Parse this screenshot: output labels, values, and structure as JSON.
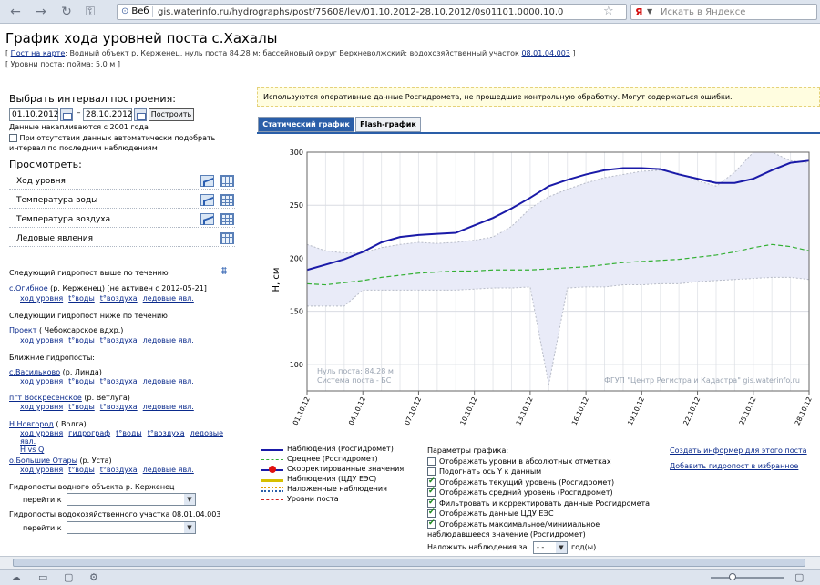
{
  "browser": {
    "web_label": "Веб",
    "url": "gis.waterinfo.ru/hydrographs/post/75608/lev/01.10.2012-28.10.2012/0s01101.0000.10.0",
    "search_brand": "Я",
    "search_placeholder": "Искать в Яндексе"
  },
  "header": {
    "title": "График хода уровней поста с.Хахалы",
    "map_link": "Пост на карте",
    "info": "; Водный объект р. Керженец, нуль поста 84.28 м; бассейновый округ Верхневолжский; водохозяйственный участок",
    "info_link": "08.01.04.003",
    "info2": "[ Уровни поста: пойма: 5.0 м ]"
  },
  "left": {
    "interval_title": "Выбрать интервал построения:",
    "date_from": "01.10.2012",
    "date_to": "28.10.2012",
    "dash": "–",
    "build_btn": "Построить",
    "since_note": "Данные накапливаются с 2001 года",
    "auto_note": "При отсутствии данных автоматически подобрать интервал по последним наблюдениям",
    "view_title": "Просмотреть:",
    "view_items": [
      "Ход уровня",
      "Температура воды",
      "Температура воздуха",
      "Ледовые явления"
    ],
    "upstream_title": "Следующий гидропост выше по течению",
    "upstream_name": "с.Огибное",
    "upstream_rest": "(р. Керженец) [не активен с 2012-05-21]",
    "downstream_title": "Следующий гидропост ниже по течению",
    "downstream_name": "Проект",
    "downstream_rest": "( Чебоксарское вдхр.)",
    "near_title": "Ближние гидропосты:",
    "near1_name": "с.Васильково",
    "near1_rest": "(р. Линда)",
    "near2_name": "пгт Воскресенское",
    "near2_rest": "(р. Ветлуга)",
    "near3_name": "Н.Новгород",
    "near3_rest": "( Волга)",
    "near4_name": "о.Большие Отары",
    "near4_rest": "(р. Уста)",
    "link_level": "ход уровня",
    "link_water": "t°воды",
    "link_air": "t°воздуха",
    "link_ice": "ледовые явл.",
    "link_hydro": "гидрограф",
    "link_hvsq": "H vs Q",
    "object_title": "Гидропосты водного объекта р. Керженец",
    "goto": "перейти к",
    "area_title": "Гидропосты водохозяйственного участка 08.01.04.003"
  },
  "notice": "Используются оперативные данные Росгидромета, не прошедшие контрольную обработку. Могут содержаться ошибки.",
  "tabs": [
    "Статический график",
    "Flash-график"
  ],
  "chart_data": {
    "type": "line",
    "ylabel": "H, см",
    "ylim": [
      75,
      300
    ],
    "yticks": [
      100,
      150,
      200,
      250,
      300
    ],
    "x": [
      "01.10.12",
      "02.10.12",
      "03.10.12",
      "04.10.12",
      "05.10.12",
      "06.10.12",
      "07.10.12",
      "08.10.12",
      "09.10.12",
      "10.10.12",
      "11.10.12",
      "12.10.12",
      "13.10.12",
      "14.10.12",
      "15.10.12",
      "16.10.12",
      "17.10.12",
      "18.10.12",
      "19.10.12",
      "20.10.12",
      "21.10.12",
      "22.10.12",
      "23.10.12",
      "24.10.12",
      "25.10.12",
      "26.10.12",
      "27.10.12",
      "28.10.12"
    ],
    "xtick_labels": [
      "01.10.12",
      "04.10.12",
      "07.10.12",
      "10.10.12",
      "13.10.12",
      "16.10.12",
      "19.10.12",
      "22.10.12",
      "25.10.12",
      "28.10.12"
    ],
    "series": [
      {
        "name": "Наблюдения (Росгидромет)",
        "color": "#1a1aa8",
        "values": [
          189,
          194,
          199,
          206,
          215,
          220,
          222,
          223,
          224,
          231,
          238,
          247,
          257,
          268,
          274,
          279,
          283,
          285,
          285,
          284,
          279,
          275,
          271,
          271,
          275,
          283,
          290,
          292
        ]
      },
      {
        "name": "Среднее (Росгидромет)",
        "color": "#33b033",
        "values": [
          176,
          175,
          177,
          179,
          182,
          184,
          186,
          187,
          188,
          188,
          189,
          189,
          189,
          190,
          191,
          192,
          194,
          196,
          197,
          198,
          199,
          201,
          203,
          206,
          210,
          213,
          211,
          207
        ]
      }
    ],
    "band": {
      "max": [
        213,
        207,
        205,
        205,
        210,
        213,
        215,
        214,
        215,
        217,
        220,
        230,
        247,
        258,
        265,
        271,
        276,
        279,
        282,
        283,
        280,
        273,
        268,
        281,
        300,
        300,
        292,
        290
      ],
      "min": [
        155,
        155,
        155,
        170,
        170,
        170,
        170,
        170,
        170,
        171,
        172,
        172,
        173,
        81,
        172,
        173,
        173,
        175,
        175,
        176,
        176,
        178,
        179,
        180,
        181,
        182,
        182,
        180
      ]
    },
    "annotations": [
      "Нуль поста: 84.28 м",
      "Система поста - БС",
      "ФГУП \"Центр Регистра и Кадастра\"  gis.waterinfo.ru"
    ]
  },
  "legend": [
    {
      "label": "Наблюдения (Росгидромет)",
      "style": "solid-blue"
    },
    {
      "label": "Среднее (Росгидромет)",
      "style": "dashed-green"
    },
    {
      "label": "Скорректированные значения",
      "style": "dot-red"
    },
    {
      "label": "Наблюдения (ЦДУ ЕЭС)",
      "style": "solid-yellow"
    },
    {
      "label": "Наложенные наблюдения",
      "style": "dotted-colors"
    },
    {
      "label": "Уровни поста",
      "style": "dashed-red"
    }
  ],
  "params": {
    "title": "Параметры графика:",
    "options": [
      {
        "label": "Отображать уровни в абсолютных отметках",
        "checked": false
      },
      {
        "label": "Подогнать ось Y к данным",
        "checked": false
      },
      {
        "label": "Отображать текущий уровень (Росгидромет)",
        "checked": true
      },
      {
        "label": "Отображать средний уровень (Росгидромет)",
        "checked": true
      },
      {
        "label": "Фильтровать и корректировать данные Росгидромета",
        "checked": true
      },
      {
        "label": "Отображать данные ЦДУ ЕЭС",
        "checked": true
      },
      {
        "label": "Отображать максимальное/минимальное",
        "checked": true
      }
    ],
    "cont": "наблюдавшееся значение (Росгидромет)",
    "overlay_label": "Наложить наблюдения за",
    "overlay_value": "- -",
    "overlay_unit": "год(ы)"
  },
  "right_links": [
    "Создать информер для этого поста",
    "Добавить гидропост в избранное"
  ]
}
